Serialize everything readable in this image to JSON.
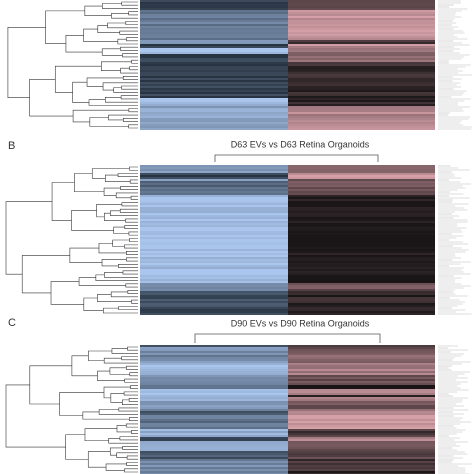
{
  "panels": [
    {
      "label": null,
      "title": null
    },
    {
      "label": "B",
      "title": "D63 EVs vs D63 Retina Organoids"
    },
    {
      "label": "C",
      "title": "D90 EVs vs D90 Retina Organoids"
    }
  ]
}
